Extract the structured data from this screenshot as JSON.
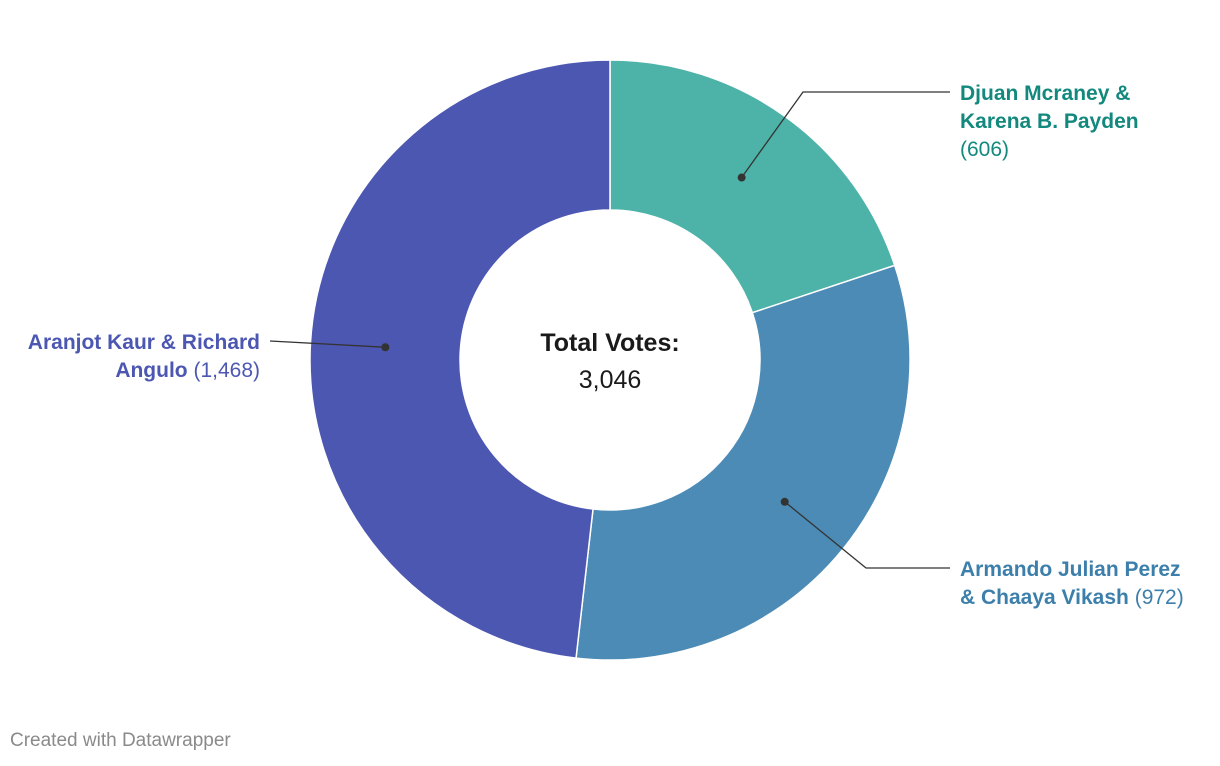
{
  "footer": "Created with Datawrapper",
  "chart_data": {
    "type": "pie",
    "donut": true,
    "center_label": {
      "title": "Total Votes:",
      "value": "3,046"
    },
    "slices": [
      {
        "name_lines": [
          "Djuan Mcraney &",
          "Karena B. Payden"
        ],
        "value": 606,
        "value_label": "(606)",
        "color": "#4db3a8",
        "label_color": "#13897e"
      },
      {
        "name_lines": [
          "Armando Julian Perez",
          "& Chaaya Vikash"
        ],
        "value": 972,
        "value_label": "(972)",
        "color": "#4b8bb5",
        "label_color": "#3d7fab"
      },
      {
        "name_lines": [
          "Aranjot Kaur & Richard",
          "Angulo"
        ],
        "value": 1468,
        "value_label": "(1,468)",
        "color": "#4c57b2",
        "label_color": "#4c57b2"
      }
    ]
  }
}
